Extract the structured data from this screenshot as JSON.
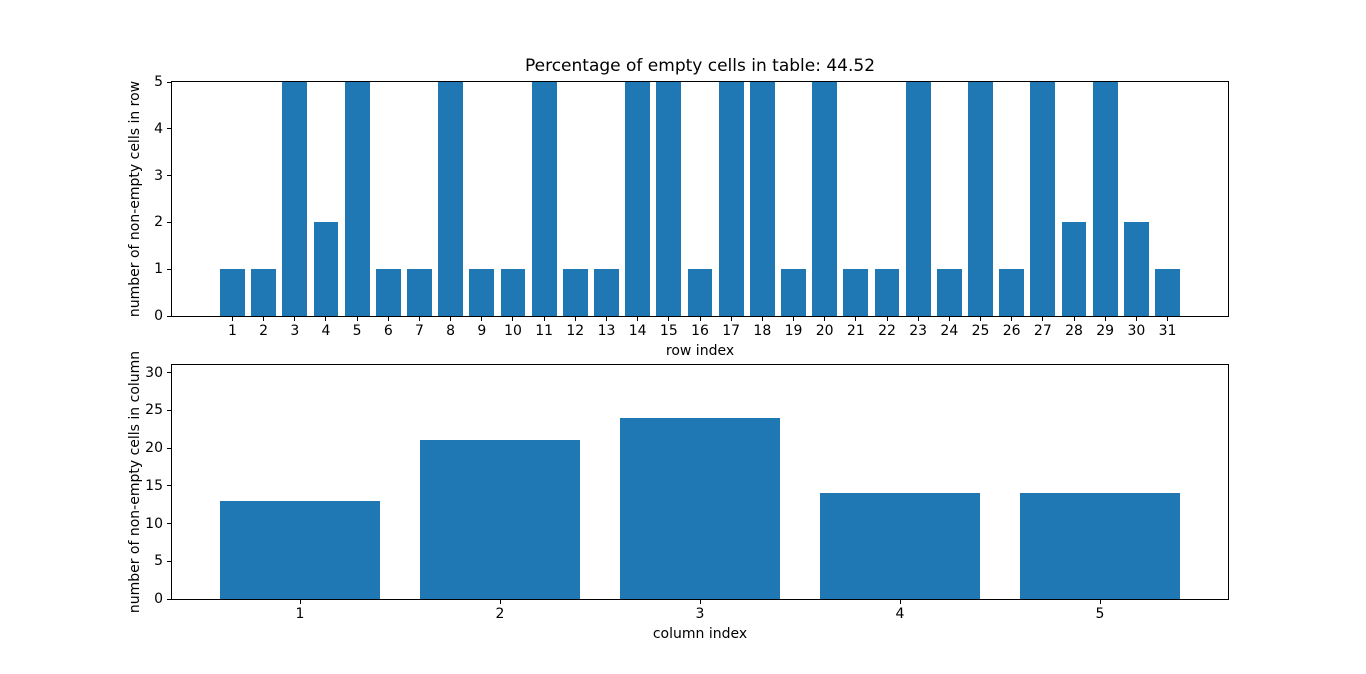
{
  "figure": {
    "title": "Percentage of empty cells in table: 44.52"
  },
  "chart_data": [
    {
      "type": "bar",
      "title": "Percentage of empty cells in table: 44.52",
      "xlabel": "row index",
      "ylabel": "number of non-empty cells in row",
      "categories": [
        1,
        2,
        3,
        4,
        5,
        6,
        7,
        8,
        9,
        10,
        11,
        12,
        13,
        14,
        15,
        16,
        17,
        18,
        19,
        20,
        21,
        22,
        23,
        24,
        25,
        26,
        27,
        28,
        29,
        30,
        31
      ],
      "values": [
        1,
        1,
        5,
        2,
        5,
        1,
        1,
        5,
        1,
        1,
        5,
        1,
        1,
        5,
        5,
        1,
        5,
        5,
        1,
        5,
        1,
        1,
        5,
        1,
        5,
        1,
        5,
        2,
        5,
        2,
        1
      ],
      "bar_width": 0.8,
      "bar_color": "#1f77b4",
      "xlim": [
        -0.94,
        32.94
      ],
      "ylim": [
        0,
        5
      ],
      "yticks": [
        0,
        1,
        2,
        3,
        4,
        5
      ],
      "grid": false,
      "legend": null
    },
    {
      "type": "bar",
      "title": "",
      "xlabel": "column index",
      "ylabel": "number of non-empty cells in column",
      "categories": [
        1,
        2,
        3,
        4,
        5
      ],
      "values": [
        13,
        21,
        24,
        14,
        14
      ],
      "bar_width": 0.8,
      "bar_color": "#1f77b4",
      "xlim": [
        0.36,
        5.64
      ],
      "ylim": [
        0,
        31
      ],
      "yticks": [
        0,
        5,
        10,
        15,
        20,
        25,
        30
      ],
      "grid": false,
      "legend": null
    }
  ]
}
